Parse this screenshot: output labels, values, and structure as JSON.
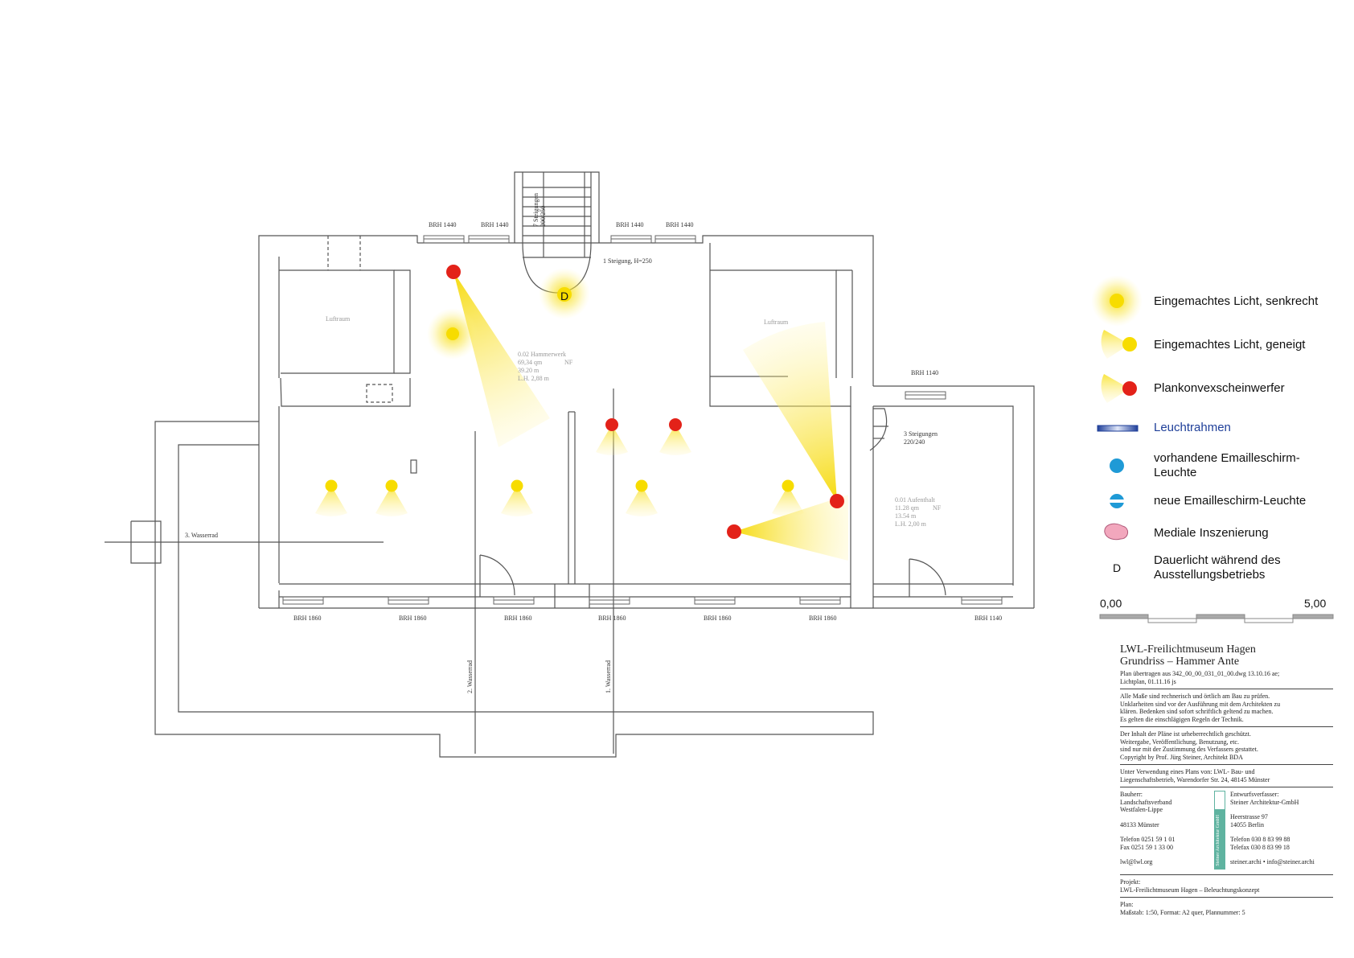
{
  "plan": {
    "labels": {
      "brh_top": [
        "BRH 1440",
        "BRH 1440",
        "BRH 1440",
        "BRH 1440"
      ],
      "brh_right": "BRH 1140",
      "brh_bottom": [
        "BRH 1860",
        "BRH 1860",
        "BRH 1860",
        "BRH 1860",
        "BRH 1860",
        "BRH 1860"
      ],
      "brh_bottom_right": "BRH 1140",
      "stair_top": "7 Steigungen",
      "stair_top_dim": "200/250",
      "step": "1 Steigung, H=250",
      "stair_right": "3 Steigungen",
      "stair_right_dim": "220/240",
      "luftraum_left": "Luftraum",
      "luftraum_right": "Luftraum",
      "room1": [
        "0.02 Hammerwerk",
        "69,34 qm",
        "NF",
        "39.20 m",
        "L.H. 2,88 m"
      ],
      "room2": [
        "0.01 Aufenthalt",
        "11.28 qm",
        "NF",
        "13.54 m",
        "L.H. 2,00 m"
      ],
      "wasserrad3": "3. Wasserrad",
      "wasserrad2": "2. Wasserrad",
      "wasserrad1": "1. Wasserrad",
      "dauerlicht_mark": "D"
    }
  },
  "legend": {
    "items": [
      {
        "symbol": "senkrecht",
        "label": "Eingemachtes Licht, senkrecht"
      },
      {
        "symbol": "geneigt",
        "label": "Eingemachtes Licht, geneigt"
      },
      {
        "symbol": "plankonvex",
        "label": "Plankonvexscheinwerfer"
      },
      {
        "symbol": "leuchtrahmen",
        "label": "Leuchtrahmen"
      },
      {
        "symbol": "emaille-vorhanden",
        "label": "vorhandene Emailleschirm-Leuchte"
      },
      {
        "symbol": "emaille-neu",
        "label": "neue Emailleschirm-Leuchte"
      },
      {
        "symbol": "medial",
        "label": "Mediale Inszenierung"
      },
      {
        "symbol": "dauerlicht",
        "label": "Dauerlicht während des Ausstellungsbetriebs"
      }
    ],
    "scale_start": "0,00",
    "scale_end": "5,00",
    "colors": {
      "yellow": "#f7dc00",
      "red": "#e32219",
      "blue": "#1f9ad6",
      "navy": "#1f3f99",
      "pink": "#f2a7bd"
    }
  },
  "title_block": {
    "title_line1": "LWL-Freilichtmuseum Hagen",
    "title_line2": "Grundriss – Hammer Ante",
    "plan_info": [
      "Plan übertragen aus 342_00_00_031_01_00.dwg 13.10.16 ae;",
      "Lichtplan, 01.11.16 js"
    ],
    "note1": [
      "Alle Maße sind rechnerisch und örtlich am Bau zu prüfen.",
      "Unklarheiten sind vor der Ausführung mit dem Architekten zu",
      "klären. Bedenken sind sofort schriftlich geltend zu machen.",
      "Es gelten die einschlägigen Regeln der Technik."
    ],
    "note2": [
      "Der Inhalt der Pläne ist urheberrechtlich geschützt.",
      "Weitergabe, Veröffentlichung, Benutzung, etc.",
      "sind nur mit der Zustimmung des Verfassers gestattet.",
      "Copyright by Prof. Jürg Steiner, Architekt BDA"
    ],
    "note3": [
      "Unter Verwendung eines Plans von: LWL- Bau- und",
      "Liegenschaftsbetrieb, Warendorfer Str. 24, 48145 Münster"
    ],
    "bauherr": [
      "Bauherr:",
      "Landschaftsverband",
      "Westfalen-Lippe",
      "",
      "48133 Münster",
      "",
      "Telefon 0251 59 1 01",
      "Fax 0251 59 1 33 00",
      "",
      "lwl@lwl.org"
    ],
    "verfasser": [
      "Entwurfsverfasser:",
      "Steiner Architektur-GmbH",
      "",
      "Heerstrasse 97",
      "14055 Berlin",
      "",
      "Telefon 030 8 83 99 88",
      "Telefax 030 8 83 99 18",
      "",
      "steiner.archi • info@steiner.archi"
    ],
    "logo_text": "Steiner Architektur GmbH",
    "projekt": [
      "Projekt:",
      "LWL-Freilichtmuseum Hagen – Beleuchtungskonzept"
    ],
    "plan": [
      "Plan:",
      "Maßstab: 1:50,  Format: A2 quer, Plannummer: 5"
    ]
  }
}
